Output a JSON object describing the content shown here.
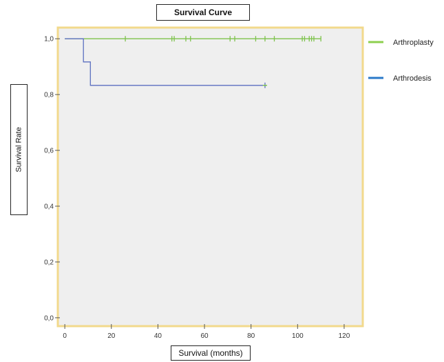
{
  "chart_data": {
    "type": "line",
    "title": "Survival Curve",
    "xlabel": "Survival (months)",
    "ylabel": "Survival Rate",
    "xlim": [
      -3,
      128
    ],
    "ylim": [
      -0.03,
      1.04
    ],
    "x_ticks": [
      {
        "value": 0,
        "label": "0"
      },
      {
        "value": 20,
        "label": "20"
      },
      {
        "value": 40,
        "label": "40"
      },
      {
        "value": 60,
        "label": "60"
      },
      {
        "value": 80,
        "label": "80"
      },
      {
        "value": 100,
        "label": "100"
      },
      {
        "value": 120,
        "label": "120"
      }
    ],
    "y_ticks": [
      {
        "value": 0.0,
        "label": "0,0"
      },
      {
        "value": 0.2,
        "label": "0,2"
      },
      {
        "value": 0.4,
        "label": "0,4"
      },
      {
        "value": 0.6,
        "label": "0,6"
      },
      {
        "value": 0.8,
        "label": "0,8"
      },
      {
        "value": 1.0,
        "label": "1,0"
      }
    ],
    "legend_position": "right",
    "series": [
      {
        "name": "Arthroplasty",
        "color": "#7cc24a",
        "steps": [
          [
            0,
            1.0
          ],
          [
            110,
            1.0
          ]
        ],
        "censored": [
          26,
          46,
          47,
          52,
          54,
          71,
          73,
          82,
          86,
          90,
          102,
          103,
          105,
          106,
          107,
          110
        ]
      },
      {
        "name": "Arthrodesis",
        "color": "#5b6fc0",
        "steps": [
          [
            0,
            1.0
          ],
          [
            8,
            1.0
          ],
          [
            8,
            0.917
          ],
          [
            11,
            0.917
          ],
          [
            11,
            0.833
          ],
          [
            86,
            0.833
          ]
        ],
        "censored": [
          86
        ]
      }
    ]
  },
  "colors": {
    "plot_background": "#efefef",
    "plot_border": "#f2d98c",
    "legend_arthroplasty": "#8ccf4e",
    "legend_arthrodesis": "#2a78c8"
  }
}
